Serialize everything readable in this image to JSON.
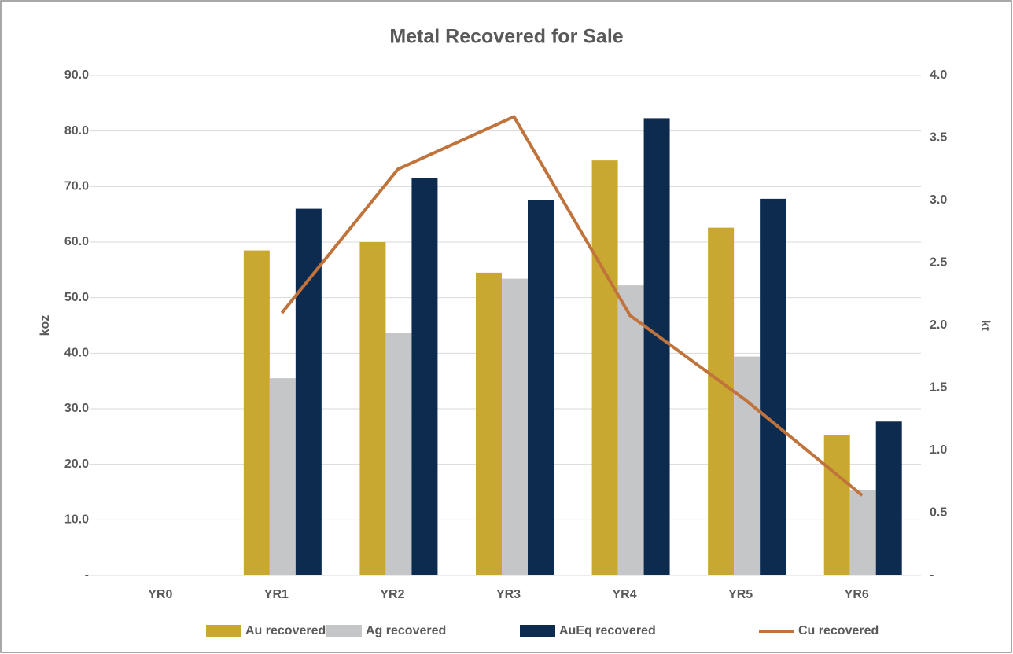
{
  "chart_data": {
    "type": "bar",
    "title": "Metal Recovered for Sale",
    "categories": [
      "YR0",
      "YR1",
      "YR2",
      "YR3",
      "YR4",
      "YR5",
      "YR6"
    ],
    "series": [
      {
        "name": "Au recovered",
        "color": "#c9a832",
        "values": [
          0,
          58.5,
          60.0,
          54.5,
          74.7,
          62.6,
          25.3
        ]
      },
      {
        "name": "Ag recovered",
        "color": "#c5c6c8",
        "values": [
          0,
          35.5,
          43.6,
          53.4,
          52.2,
          39.4,
          15.4
        ]
      },
      {
        "name": "AuEq recovered",
        "color": "#0d2a4f",
        "values": [
          0,
          66.0,
          71.5,
          67.5,
          82.3,
          67.8,
          27.7
        ]
      },
      {
        "name": "Cu recovered",
        "color": "#c0733a",
        "type": "line",
        "axis": "y2",
        "values": [
          null,
          2.1,
          3.25,
          3.67,
          2.08,
          1.4,
          0.64
        ]
      }
    ],
    "ylabel": "koz",
    "y2label": "kt",
    "ylim": [
      0,
      90
    ],
    "yticks": [
      {
        "value": 0,
        "label": "-"
      },
      {
        "value": 10,
        "label": "10.0"
      },
      {
        "value": 20,
        "label": "20.0"
      },
      {
        "value": 30,
        "label": "30.0"
      },
      {
        "value": 40,
        "label": "40.0"
      },
      {
        "value": 50,
        "label": "50.0"
      },
      {
        "value": 60,
        "label": "60.0"
      },
      {
        "value": 70,
        "label": "70.0"
      },
      {
        "value": 80,
        "label": "80.0"
      },
      {
        "value": 90,
        "label": "90.0"
      }
    ],
    "y2lim": [
      0,
      4
    ],
    "y2ticks": [
      {
        "value": 0,
        "label": "-"
      },
      0.5,
      {
        "value": 1,
        "label": "1.0"
      },
      1.5,
      {
        "value": 2,
        "label": "2.0"
      },
      2.5,
      {
        "value": 3,
        "label": "3.0"
      },
      3.5,
      {
        "value": 4,
        "label": "4.0"
      }
    ],
    "grid": true,
    "legend": "bottom"
  }
}
